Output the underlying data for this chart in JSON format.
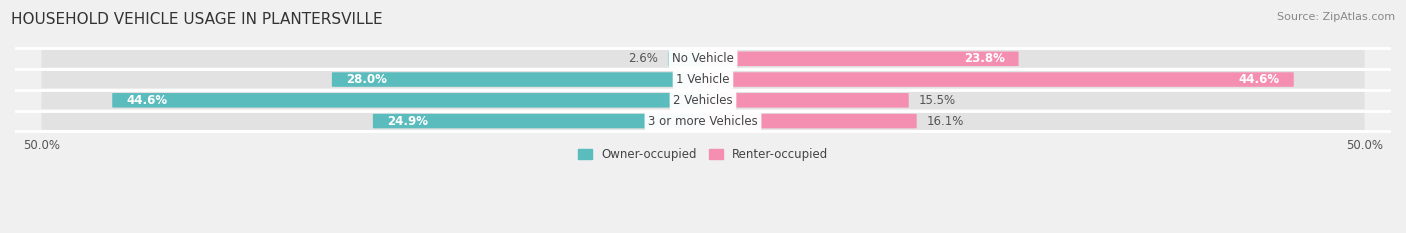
{
  "title": "HOUSEHOLD VEHICLE USAGE IN PLANTERSVILLE",
  "source": "Source: ZipAtlas.com",
  "categories": [
    "No Vehicle",
    "1 Vehicle",
    "2 Vehicles",
    "3 or more Vehicles"
  ],
  "owner_values": [
    2.6,
    28.0,
    44.6,
    24.9
  ],
  "renter_values": [
    23.8,
    44.6,
    15.5,
    16.1
  ],
  "owner_color": "#5bbcbe",
  "renter_color": "#f48fb1",
  "owner_label": "Owner-occupied",
  "renter_label": "Renter-occupied",
  "xticklabels": [
    "50.0%",
    "50.0%"
  ],
  "bg_color": "#f0f0f0",
  "row_bg_color": "#e4e4e4",
  "row_bg_light": "#ebebeb",
  "title_fontsize": 11,
  "source_fontsize": 8,
  "label_fontsize": 8.5,
  "category_fontsize": 8.5
}
